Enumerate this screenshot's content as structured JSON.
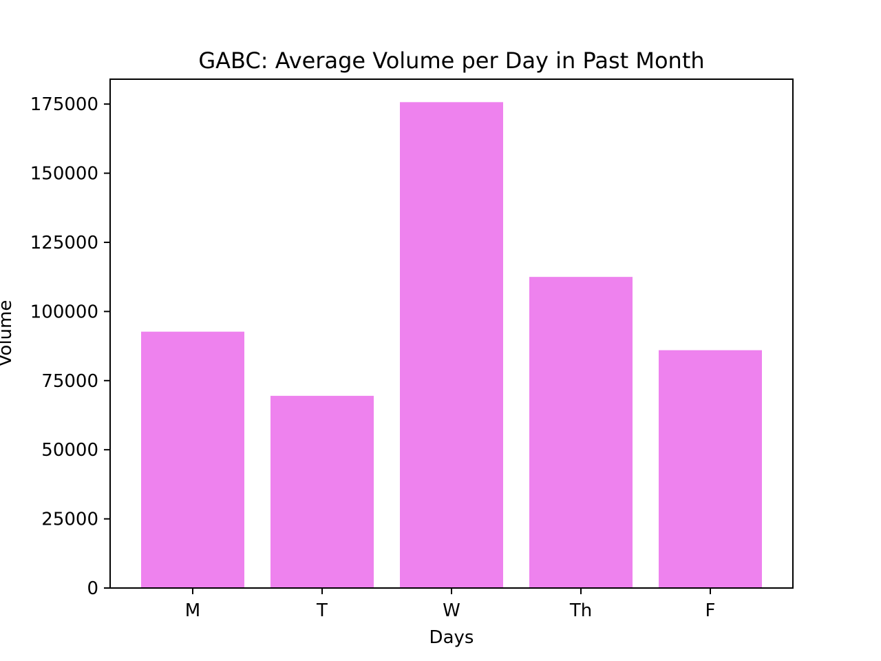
{
  "chart_data": {
    "type": "bar",
    "title": "GABC: Average Volume per Day in Past Month",
    "xlabel": "Days",
    "ylabel": "Volume",
    "categories": [
      "M",
      "T",
      "W",
      "Th",
      "F"
    ],
    "values": [
      92700,
      69500,
      175700,
      112500,
      86000
    ],
    "ylim": [
      0,
      184000
    ],
    "yticks": [
      0,
      25000,
      50000,
      75000,
      100000,
      125000,
      150000,
      175000
    ],
    "bar_color": "#ee82ee",
    "grid": false,
    "legend": "none"
  }
}
